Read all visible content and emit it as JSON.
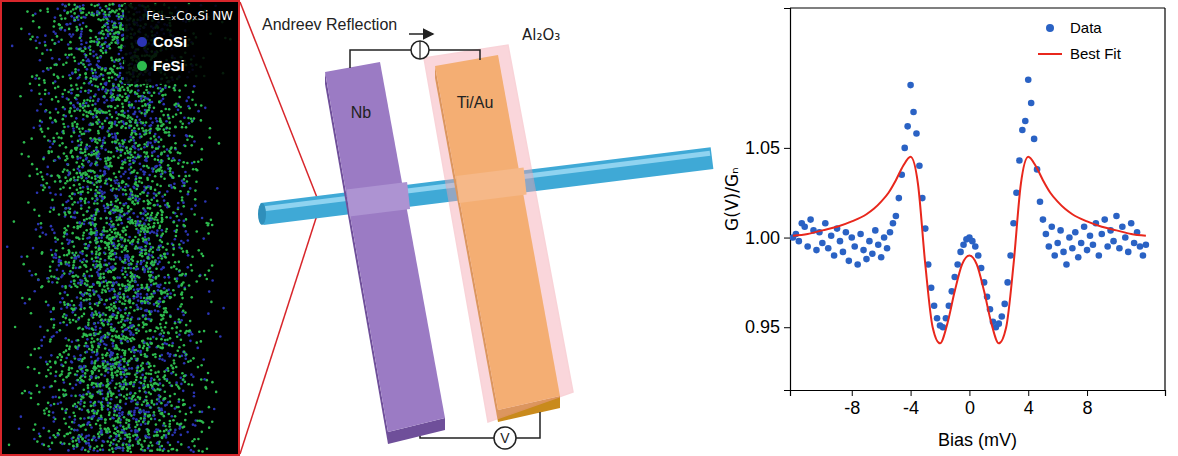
{
  "image_panel": {
    "title": "Fe₁₋ₓCoₓSi NW",
    "legend": [
      {
        "label": "CoSi",
        "color": "#2b35b5"
      },
      {
        "label": "FeSi",
        "color": "#2dbb4e"
      }
    ]
  },
  "diagram": {
    "title": "Andreev Reflection",
    "electrode": "Nb",
    "contact": "Ti/Au",
    "oxide": "Al₂O₃",
    "meter": "V"
  },
  "chart_data": {
    "type": "scatter",
    "xlabel": "Bias (mV)",
    "ylabel": "G(V)/Gₙ",
    "xlim": [
      -12.2,
      13.3
    ],
    "ylim": [
      0.915,
      1.128
    ],
    "xticks": [
      -8,
      -4,
      0,
      4,
      8
    ],
    "yticks": [
      0.95,
      {
        "value": 1,
        "label": "1.00"
      },
      1.05
    ],
    "grid": false,
    "legend": "upper right",
    "series": [
      {
        "name": "Data",
        "type": "scatter",
        "marker": "circle",
        "color": "#2a62c4",
        "x": [
          -12,
          -11.8,
          -11.6,
          -11.4,
          -11.2,
          -11,
          -10.8,
          -10.6,
          -10.4,
          -10.2,
          -10,
          -9.8,
          -9.6,
          -9.4,
          -9.2,
          -9,
          -8.8,
          -8.6,
          -8.4,
          -8.2,
          -8,
          -7.8,
          -7.6,
          -7.4,
          -7.2,
          -7,
          -6.8,
          -6.6,
          -6.4,
          -6.2,
          -6,
          -5.8,
          -5.6,
          -5.4,
          -5.2,
          -5,
          -4.8,
          -4.6,
          -4.4,
          -4.2,
          -4,
          -3.8,
          -3.6,
          -3.4,
          -3.2,
          -3,
          -2.8,
          -2.6,
          -2.4,
          -2.2,
          -2,
          -1.8,
          -1.6,
          -1.4,
          -1.2,
          -1,
          -0.8,
          -0.6,
          -0.4,
          -0.2,
          0,
          0.2,
          0.4,
          0.6,
          0.8,
          1,
          1.2,
          1.4,
          1.6,
          1.8,
          2,
          2.2,
          2.4,
          2.6,
          2.8,
          3,
          3.2,
          3.4,
          3.6,
          3.8,
          4,
          4.2,
          4.4,
          4.6,
          4.8,
          5,
          5.2,
          5.4,
          5.6,
          5.8,
          6,
          6.2,
          6.4,
          6.6,
          6.8,
          7,
          7.2,
          7.4,
          7.6,
          7.8,
          8,
          8.2,
          8.4,
          8.6,
          8.8,
          9,
          9.2,
          9.4,
          9.6,
          9.8,
          10,
          10.2,
          10.4,
          10.6,
          10.8,
          11,
          11.2,
          11.4,
          11.6,
          11.8,
          12
        ],
        "values": [
          1.0,
          1.002,
          0.998,
          1.008,
          1.006,
          0.995,
          1.01,
          1.004,
          0.993,
          1.003,
          0.997,
          1.008,
          0.994,
          1.001,
          0.99,
          1.005,
          0.998,
          0.992,
          1.003,
          0.987,
          1.0,
          0.995,
          0.985,
          1.002,
          0.993,
          0.988,
          0.998,
          0.991,
          1.004,
          0.996,
          0.989,
          1.0,
          0.994,
          1.003,
          1.008,
          1.012,
          1.022,
          1.035,
          1.05,
          1.062,
          1.085,
          1.07,
          1.058,
          1.04,
          1.022,
          1.005,
          0.985,
          0.972,
          0.962,
          0.955,
          0.951,
          0.95,
          0.955,
          0.962,
          0.97,
          0.978,
          0.985,
          0.992,
          0.996,
          0.999,
          1.0,
          0.998,
          0.995,
          0.99,
          0.983,
          0.975,
          0.967,
          0.96,
          0.953,
          0.95,
          0.952,
          0.956,
          0.963,
          0.975,
          0.99,
          1.008,
          1.025,
          1.043,
          1.06,
          1.065,
          1.088,
          1.075,
          1.055,
          1.038,
          1.02,
          1.01,
          1.002,
          0.995,
          1.006,
          0.99,
          0.997,
          1.004,
          0.992,
          0.985,
          1.0,
          0.994,
          1.003,
          0.989,
          0.997,
          1.006,
          0.993,
          1.001,
          0.996,
          1.008,
          0.99,
          1.002,
          1.01,
          0.995,
          1.004,
          0.998,
          1.012,
          0.994,
          1.006,
          1.0,
          0.992,
          1.008,
          0.997,
          1.003,
          0.995,
          0.99,
          0.996
        ]
      },
      {
        "name": "Best Fit",
        "type": "line",
        "line_style": "solid",
        "color": "#e8271c",
        "x": [
          -12,
          -11,
          -10,
          -9,
          -8,
          -7,
          -6.5,
          -6,
          -5.5,
          -5,
          -4.5,
          -4,
          -3.5,
          -3,
          -2.5,
          -2,
          -1.5,
          -1,
          -0.5,
          0,
          0.5,
          1,
          1.5,
          2,
          2.5,
          3,
          3.5,
          4,
          4.5,
          5,
          5.5,
          6,
          6.5,
          7,
          8,
          9,
          10,
          11,
          12
        ],
        "values": [
          1.001,
          1.002,
          1.004,
          1.006,
          1.009,
          1.013,
          1.016,
          1.02,
          1.025,
          1.032,
          1.04,
          1.045,
          1.03,
          0.985,
          0.95,
          0.941,
          0.952,
          0.97,
          0.985,
          0.99,
          0.985,
          0.97,
          0.952,
          0.941,
          0.95,
          0.985,
          1.03,
          1.045,
          1.04,
          1.032,
          1.025,
          1.02,
          1.016,
          1.013,
          1.009,
          1.006,
          1.004,
          1.002,
          1.001
        ]
      }
    ]
  }
}
